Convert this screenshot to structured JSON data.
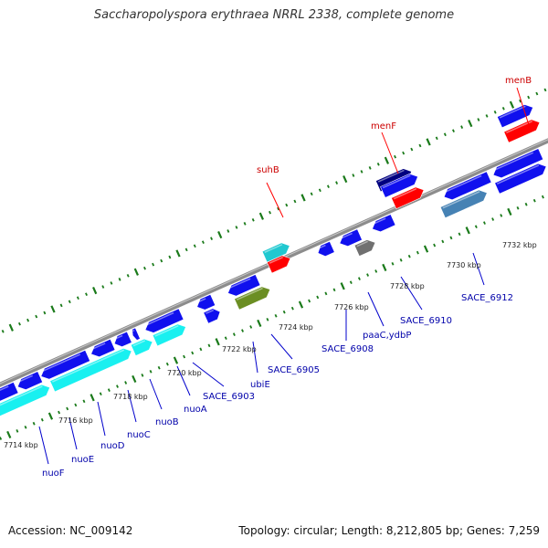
{
  "title": "Saccharopolyspora erythraea NRRL 2338, complete genome",
  "footer": {
    "accession": "Accession: NC_009142",
    "summary": "Topology: circular; Length: 8,212,805 bp; Genes: 7,259"
  },
  "colors": {
    "blue": "#1010ee",
    "navy": "#000080",
    "cyan": "#19f0f0",
    "teal": "#20c8d0",
    "red": "#ff0000",
    "olive": "#6b8e23",
    "gray": "#707070",
    "steel": "#4682b4",
    "backbone": "#8c8c8c",
    "tick": "#1a7a1a",
    "label_blue": "#0000aa",
    "label_red": "#cc0000"
  },
  "kbp_labels": [
    "7714 kbp",
    "7716 kbp",
    "7718 kbp",
    "7720 kbp",
    "7722 kbp",
    "7724 kbp",
    "7726 kbp",
    "7728 kbp",
    "7730 kbp",
    "7732 kbp"
  ],
  "gene_labels": {
    "below": [
      "nuoF",
      "nuoE",
      "nuoD",
      "nuoC",
      "nuoB",
      "nuoA",
      "SACE_6903",
      "ubiE",
      "SACE_6905",
      "SACE_6908",
      "paaC,ydbP",
      "SACE_6910",
      "SACE_6912"
    ],
    "above": [
      "suhB",
      "menF",
      "menB"
    ]
  }
}
